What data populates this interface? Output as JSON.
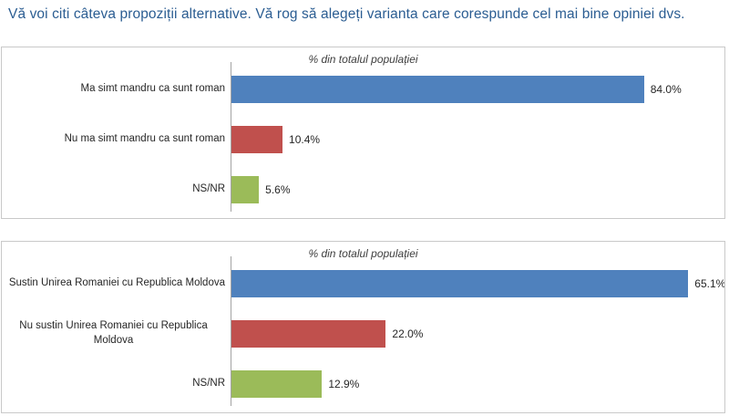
{
  "page": {
    "title": "Vă voi citi câteva propoziții alternative. Vă rog să alegeți varianta care corespunde cel mai bine opiniei dvs.",
    "title_color": "#2b5d92",
    "background": "#ffffff",
    "panel_border_color": "#c9c9c9",
    "axis_line_color": "#a3a3a3"
  },
  "chart_data": [
    {
      "type": "bar",
      "orientation": "horizontal",
      "title": "% din totalul populației",
      "categories": [
        "Ma simt mandru ca sunt roman",
        "Nu ma simt mandru ca sunt roman",
        "NS/NR"
      ],
      "values": [
        84.0,
        10.4,
        5.6
      ],
      "value_labels": [
        "84.0%",
        "10.4%",
        "5.6%"
      ],
      "colors": [
        "#4F81BD",
        "#C0504D",
        "#9BBB59"
      ],
      "axis_max": 100,
      "xlabel": "",
      "ylabel": "",
      "grid": false,
      "legend": "none",
      "data_labels": true
    },
    {
      "type": "bar",
      "orientation": "horizontal",
      "title": "% din totalul populației",
      "categories": [
        "Sustin Unirea Romaniei cu Republica Moldova",
        "Nu sustin Unirea Romaniei cu Republica Moldova",
        "NS/NR"
      ],
      "values": [
        65.1,
        22.0,
        12.9
      ],
      "value_labels": [
        "65.1%",
        "22.0%",
        "12.9%"
      ],
      "colors": [
        "#4F81BD",
        "#C0504D",
        "#9BBB59"
      ],
      "axis_max": 70,
      "xlabel": "",
      "ylabel": "",
      "grid": false,
      "legend": "none",
      "data_labels": true
    }
  ]
}
